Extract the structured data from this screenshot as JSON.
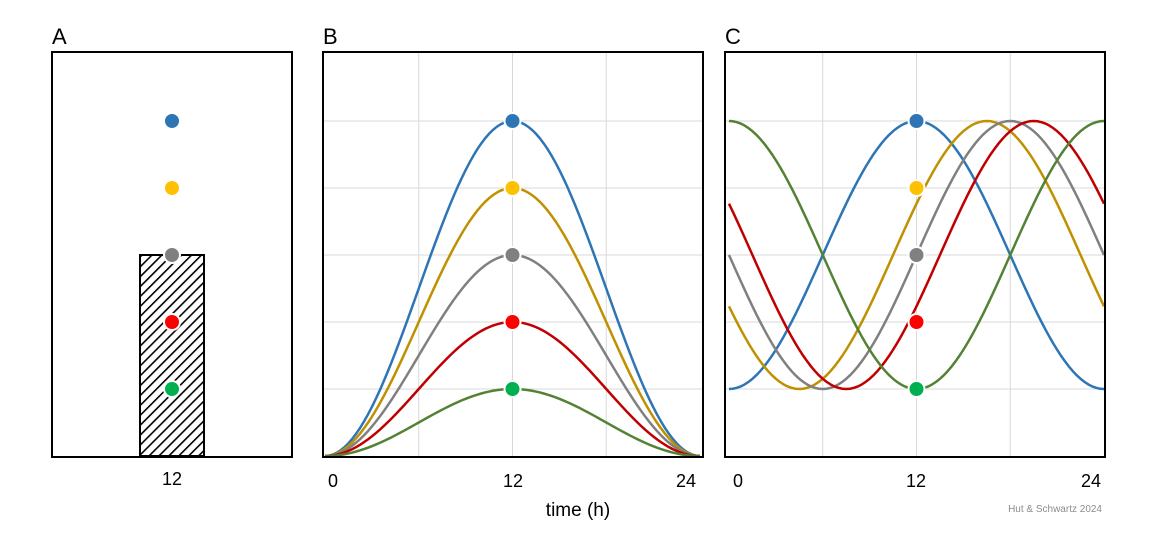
{
  "chart_data": [
    {
      "panel": "A",
      "type": "bar",
      "categories": [
        "12"
      ],
      "values": [
        3
      ],
      "bar_pattern": "diagonal-hatch",
      "points": [
        {
          "x": 12,
          "y": 5,
          "color": "#2e75b6"
        },
        {
          "x": 12,
          "y": 4,
          "color": "#ffc000"
        },
        {
          "x": 12,
          "y": 3,
          "color": "#808080"
        },
        {
          "x": 12,
          "y": 2,
          "color": "#ff0000"
        },
        {
          "x": 12,
          "y": 1,
          "color": "#00b050"
        }
      ],
      "ylim": [
        0,
        6
      ],
      "grid": false
    },
    {
      "panel": "B",
      "type": "line",
      "xlabel": "time (h)",
      "xticks": [
        "0",
        "12",
        "24"
      ],
      "xlim": [
        0,
        24
      ],
      "ylim": [
        0,
        6
      ],
      "grid": true,
      "shape": "raised-cosine",
      "series": [
        {
          "amplitude": 5,
          "peak_time": 12,
          "color": "#2e75b6",
          "dot_color": "#2e75b6"
        },
        {
          "amplitude": 4,
          "peak_time": 12,
          "color": "#bf9000",
          "dot_color": "#ffc000"
        },
        {
          "amplitude": 3,
          "peak_time": 12,
          "color": "#808080",
          "dot_color": "#808080"
        },
        {
          "amplitude": 2,
          "peak_time": 12,
          "color": "#c00000",
          "dot_color": "#ff0000"
        },
        {
          "amplitude": 1,
          "peak_time": 12,
          "color": "#548235",
          "dot_color": "#00b050"
        }
      ],
      "points_at_x": 12
    },
    {
      "panel": "C",
      "type": "line",
      "xticks": [
        "0",
        "12",
        "24"
      ],
      "xlim": [
        0,
        24
      ],
      "ylim": [
        0,
        6
      ],
      "grid": true,
      "shape": "cosine",
      "series": [
        {
          "min": 1,
          "max": 5,
          "peak_time": 12,
          "color": "#2e75b6",
          "dot_color": "#2e75b6",
          "dot_y": 5
        },
        {
          "min": 1,
          "max": 5,
          "peak_time": 16.5,
          "color": "#bf9000",
          "dot_color": "#ffc000",
          "dot_y": 4
        },
        {
          "min": 1,
          "max": 5,
          "peak_time": 18,
          "color": "#808080",
          "dot_color": "#808080",
          "dot_y": 3
        },
        {
          "min": 1,
          "max": 5,
          "peak_time": 19.5,
          "color": "#c00000",
          "dot_color": "#ff0000",
          "dot_y": 2
        },
        {
          "min": 1,
          "max": 5,
          "peak_time": 24,
          "color": "#548235",
          "dot_color": "#00b050",
          "dot_y": 1
        }
      ],
      "points_at_x": 12
    }
  ],
  "labels": {
    "panel_a": "A",
    "panel_b": "B",
    "panel_c": "C",
    "a_tick": "12",
    "b_tick_0": "0",
    "b_tick_12": "12",
    "b_tick_24": "24",
    "b_xlabel": "time (h)",
    "c_tick_0": "0",
    "c_tick_12": "12",
    "c_tick_24": "24",
    "credit": "Hut & Schwartz 2024"
  }
}
